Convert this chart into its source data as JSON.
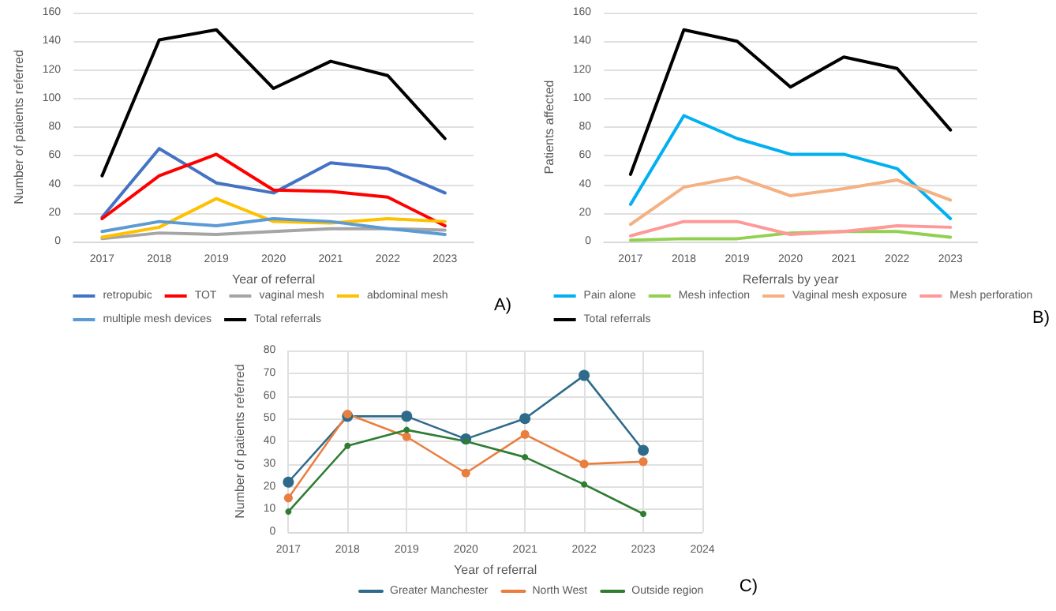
{
  "chart_data": [
    {
      "type": "line",
      "xlabel": "Year of referral",
      "ylabel": "Number of patients referred",
      "categories": [
        "2017",
        "2018",
        "2019",
        "2020",
        "2021",
        "2022",
        "2023"
      ],
      "ylim": [
        0,
        160
      ],
      "yticks": [
        0,
        20,
        40,
        60,
        80,
        100,
        120,
        140,
        160
      ],
      "grid": "y",
      "legend": "bottom",
      "marker": "none",
      "annotations": [
        "A)"
      ],
      "series": [
        {
          "name": "retropubic",
          "color": "#4472c4",
          "values": [
            17,
            65,
            41,
            34,
            55,
            51,
            34
          ]
        },
        {
          "name": "TOT",
          "color": "#ff0000",
          "values": [
            16,
            46,
            61,
            36,
            35,
            31,
            11
          ]
        },
        {
          "name": "vaginal mesh",
          "color": "#a5a5a5",
          "values": [
            2,
            6,
            5,
            7,
            9,
            9,
            8
          ]
        },
        {
          "name": "abdominal mesh",
          "color": "#ffc000",
          "values": [
            3,
            10,
            30,
            14,
            13,
            16,
            14
          ]
        },
        {
          "name": "multiple mesh devices",
          "color": "#5b9bd5",
          "values": [
            7,
            14,
            11,
            16,
            14,
            9,
            5
          ]
        },
        {
          "name": "Total referrals",
          "color": "#000000",
          "values": [
            46,
            141,
            148,
            107,
            126,
            116,
            72
          ]
        }
      ]
    },
    {
      "type": "line",
      "xlabel": "Referrals by year",
      "ylabel": "Patients affected",
      "categories": [
        "2017",
        "2018",
        "2019",
        "2020",
        "2021",
        "2022",
        "2023"
      ],
      "ylim": [
        0,
        160
      ],
      "yticks": [
        0,
        20,
        40,
        60,
        80,
        100,
        120,
        140,
        160
      ],
      "grid": "y",
      "legend": "bottom",
      "marker": "none",
      "annotations": [
        "B)"
      ],
      "series": [
        {
          "name": "Pain alone",
          "color": "#00b0f0",
          "values": [
            26,
            88,
            72,
            61,
            61,
            51,
            16
          ]
        },
        {
          "name": "Mesh infection",
          "color": "#92d050",
          "values": [
            1,
            2,
            2,
            6,
            7,
            7,
            3
          ]
        },
        {
          "name": "Vaginal mesh exposure",
          "color": "#f4b183",
          "values": [
            12,
            38,
            45,
            32,
            37,
            43,
            29
          ]
        },
        {
          "name": "Mesh perforation",
          "color": "#ff9999",
          "values": [
            4,
            14,
            14,
            5,
            7,
            11,
            10
          ]
        },
        {
          "name": "Total referrals",
          "color": "#000000",
          "values": [
            47,
            148,
            140,
            108,
            129,
            121,
            78
          ]
        }
      ]
    },
    {
      "type": "line",
      "xlabel": "Year of referral",
      "ylabel": "Number of patients referred",
      "x": [
        2017,
        2018,
        2019,
        2020,
        2021,
        2022,
        2023
      ],
      "xlim": [
        2017,
        2024
      ],
      "xticks": [
        2017,
        2018,
        2019,
        2020,
        2021,
        2022,
        2023,
        2024
      ],
      "ylim": [
        0,
        80
      ],
      "yticks": [
        0,
        10,
        20,
        30,
        40,
        50,
        60,
        70,
        80
      ],
      "grid": true,
      "legend": "bottom",
      "marker": "circle",
      "annotations": [
        "C)"
      ],
      "series": [
        {
          "name": "Greater Manchester",
          "color": "#2e6b8a",
          "values": [
            22,
            51,
            51,
            41,
            50,
            69,
            36
          ]
        },
        {
          "name": "North West",
          "color": "#e97e3f",
          "values": [
            15,
            52,
            42,
            26,
            43,
            30,
            31
          ]
        },
        {
          "name": "Outside region",
          "color": "#2e7d32",
          "values": [
            9,
            38,
            45,
            40,
            33,
            21,
            8
          ]
        }
      ]
    }
  ]
}
